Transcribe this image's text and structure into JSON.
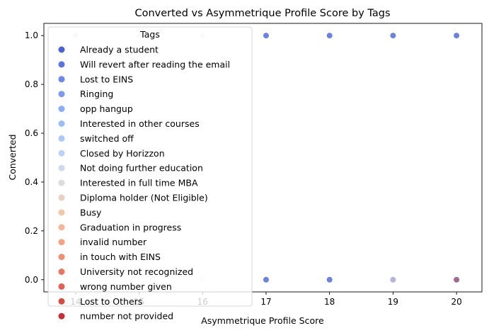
{
  "chart_data": {
    "type": "scatter",
    "title": "Converted vs Asymmetrique Profile Score by Tags",
    "xlabel": "Asymmetrique Profile Score",
    "ylabel": "Converted",
    "xlim": [
      13.5,
      20.4
    ],
    "ylim": [
      -0.05,
      1.05
    ],
    "x_ticks": [
      14,
      15,
      16,
      17,
      18,
      19,
      20
    ],
    "y_ticks": [
      0.0,
      0.2,
      0.4,
      0.6,
      0.8,
      1.0
    ],
    "x_tick_labels": [
      "14",
      "15",
      "16",
      "17",
      "18",
      "19",
      "20"
    ],
    "y_tick_labels": [
      "0.0",
      "0.2",
      "0.4",
      "0.6",
      "0.8",
      "1.0"
    ],
    "grid": false,
    "legend": {
      "title": "Tags",
      "placement": "upper-left",
      "entries": [
        {
          "label": "Already a student",
          "color": "#4a63d3"
        },
        {
          "label": "Will revert after reading the email",
          "color": "#5a74df"
        },
        {
          "label": "Lost to EINS",
          "color": "#6b88ea"
        },
        {
          "label": "Ringing",
          "color": "#7b9af0"
        },
        {
          "label": "opp hangup",
          "color": "#8badf7"
        },
        {
          "label": "Interested in other courses",
          "color": "#9dbdf9"
        },
        {
          "label": "switched off",
          "color": "#adc9fb"
        },
        {
          "label": "Closed by Horizzon",
          "color": "#bcd3f8"
        },
        {
          "label": "Not doing further education",
          "color": "#cdd9ec"
        },
        {
          "label": "Interested  in full time MBA",
          "color": "#dddcdc"
        },
        {
          "label": "Diploma holder (Not Eligible)",
          "color": "#eccfc4"
        },
        {
          "label": "Busy",
          "color": "#f2c8a8"
        },
        {
          "label": "Graduation in progress",
          "color": "#f4b799"
        },
        {
          "label": "invalid number",
          "color": "#f3a381"
        },
        {
          "label": "in touch with EINS",
          "color": "#ee9073"
        },
        {
          "label": "University not recognized",
          "color": "#e7785f"
        },
        {
          "label": "wrong number given",
          "color": "#df6352"
        },
        {
          "label": "Lost to Others",
          "color": "#d24d43"
        },
        {
          "label": "number not provided",
          "color": "#c3303a"
        }
      ]
    },
    "points": [
      {
        "x": 14,
        "y": 1,
        "color": "#dfe6f7"
      },
      {
        "x": 15,
        "y": 1,
        "color": "#dfe6f7"
      },
      {
        "x": 16,
        "y": 1,
        "color": "#dfe6f7"
      },
      {
        "x": 17,
        "y": 1,
        "color": "#6b83de"
      },
      {
        "x": 18,
        "y": 1,
        "color": "#6b83de"
      },
      {
        "x": 19,
        "y": 1,
        "color": "#6b83de"
      },
      {
        "x": 20,
        "y": 1,
        "color": "#6b83de"
      },
      {
        "x": 14,
        "y": 0,
        "color": "#eceef2"
      },
      {
        "x": 16,
        "y": 0,
        "color": "#eceef2"
      },
      {
        "x": 17,
        "y": 0,
        "color": "#6b83de"
      },
      {
        "x": 18,
        "y": 0,
        "color": "#6b83de"
      },
      {
        "x": 19,
        "y": 0,
        "color": "#b3b6d6"
      },
      {
        "x": 20,
        "y": 0,
        "color": "#a26a8c"
      }
    ]
  }
}
